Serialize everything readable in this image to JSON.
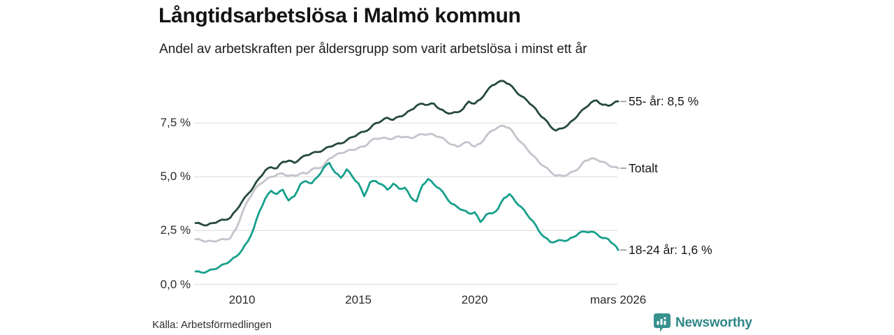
{
  "header": {
    "title": "Långtidsarbetslösa i Malmö kommun",
    "subtitle": "Andel av arbetskraften per åldersgrupp som varit arbetslösa i minst ett år"
  },
  "footer": {
    "source": "Källa: Arbetsförmedlingen",
    "brand": "Newsworthy",
    "brand_color": "#2e8688",
    "badge_color": "#37918f"
  },
  "chart_data": {
    "type": "line",
    "title": "Långtidsarbetslösa i Malmö kommun",
    "subtitle": "Andel av arbetskraften per åldersgrupp som varit arbetslösa i minst ett år",
    "unit": "%",
    "grid_color": "#e0e0e0",
    "tick_dash_color": "#8f8f8f",
    "x_axis": {
      "range": [
        2008,
        2026.17
      ],
      "ticks": [
        {
          "label": "2010",
          "year": 2010
        },
        {
          "label": "2015",
          "year": 2015
        },
        {
          "label": "2020",
          "year": 2020
        },
        {
          "label": "mars 2026",
          "year": 2026.17
        }
      ]
    },
    "y_axis": {
      "range": [
        0,
        9.7
      ],
      "ticks": [
        {
          "label": "0,0 %",
          "value": 0
        },
        {
          "label": "2,5 %",
          "value": 2.5
        },
        {
          "label": "5,0 %",
          "value": 5
        },
        {
          "label": "7,5 %",
          "value": 7.5
        }
      ]
    },
    "series": [
      {
        "name": "Totalt",
        "end_label": "Totalt",
        "color": "#c5c3cc",
        "points": [
          [
            2008,
            2.1
          ],
          [
            2008.25,
            2.05
          ],
          [
            2008.5,
            2
          ],
          [
            2008.75,
            2
          ],
          [
            2009,
            2.05
          ],
          [
            2009.25,
            2.1
          ],
          [
            2009.5,
            2.15
          ],
          [
            2009.75,
            2.6
          ],
          [
            2010,
            3.3
          ],
          [
            2010.25,
            3.9
          ],
          [
            2010.5,
            4.35
          ],
          [
            2010.75,
            4.65
          ],
          [
            2011,
            4.85
          ],
          [
            2011.25,
            5
          ],
          [
            2011.5,
            5.1
          ],
          [
            2011.75,
            5.15
          ],
          [
            2012,
            5.05
          ],
          [
            2012.25,
            5.05
          ],
          [
            2012.5,
            5.15
          ],
          [
            2012.75,
            5.15
          ],
          [
            2013,
            5.35
          ],
          [
            2013.25,
            5.4
          ],
          [
            2013.5,
            5.5
          ],
          [
            2013.75,
            5.85
          ],
          [
            2014,
            6
          ],
          [
            2014.25,
            6.1
          ],
          [
            2014.5,
            6.2
          ],
          [
            2014.75,
            6.25
          ],
          [
            2015,
            6.35
          ],
          [
            2015.25,
            6.4
          ],
          [
            2015.5,
            6.65
          ],
          [
            2015.75,
            6.78
          ],
          [
            2016,
            6.8
          ],
          [
            2016.25,
            6.78
          ],
          [
            2016.5,
            6.78
          ],
          [
            2016.75,
            6.88
          ],
          [
            2017,
            6.85
          ],
          [
            2017.25,
            6.8
          ],
          [
            2017.5,
            6.9
          ],
          [
            2017.75,
            6.98
          ],
          [
            2018,
            6.98
          ],
          [
            2018.25,
            6.95
          ],
          [
            2018.5,
            6.85
          ],
          [
            2018.75,
            6.7
          ],
          [
            2019,
            6.5
          ],
          [
            2019.25,
            6.4
          ],
          [
            2019.5,
            6.55
          ],
          [
            2019.75,
            6.6
          ],
          [
            2020,
            6.4
          ],
          [
            2020.25,
            6.55
          ],
          [
            2020.5,
            6.9
          ],
          [
            2020.75,
            7.15
          ],
          [
            2021,
            7.3
          ],
          [
            2021.25,
            7.37
          ],
          [
            2021.5,
            7.27
          ],
          [
            2021.75,
            6.9
          ],
          [
            2022,
            6.6
          ],
          [
            2022.25,
            6.3
          ],
          [
            2022.5,
            6
          ],
          [
            2022.75,
            5.7
          ],
          [
            2023,
            5.48
          ],
          [
            2023.25,
            5.25
          ],
          [
            2023.5,
            5.05
          ],
          [
            2023.75,
            5.05
          ],
          [
            2024,
            5.1
          ],
          [
            2024.25,
            5.25
          ],
          [
            2024.5,
            5.42
          ],
          [
            2024.75,
            5.75
          ],
          [
            2025,
            5.85
          ],
          [
            2025.25,
            5.8
          ],
          [
            2025.5,
            5.7
          ],
          [
            2025.75,
            5.55
          ],
          [
            2026,
            5.45
          ],
          [
            2026.17,
            5.4
          ]
        ]
      },
      {
        "name": "18-24 år",
        "end_label": "18-24 år: 1,6 %",
        "color": "#16a08c",
        "points": [
          [
            2008,
            0.6
          ],
          [
            2008.25,
            0.55
          ],
          [
            2008.5,
            0.6
          ],
          [
            2008.75,
            0.7
          ],
          [
            2009,
            0.8
          ],
          [
            2009.25,
            0.95
          ],
          [
            2009.5,
            1.1
          ],
          [
            2009.75,
            1.3
          ],
          [
            2010,
            1.6
          ],
          [
            2010.25,
            2
          ],
          [
            2010.5,
            2.6
          ],
          [
            2010.75,
            3.4
          ],
          [
            2011,
            4
          ],
          [
            2011.25,
            4.35
          ],
          [
            2011.5,
            4.2
          ],
          [
            2011.75,
            4.4
          ],
          [
            2012,
            3.9
          ],
          [
            2012.25,
            4.1
          ],
          [
            2012.5,
            4.65
          ],
          [
            2012.75,
            4.8
          ],
          [
            2013,
            4.7
          ],
          [
            2013.25,
            5
          ],
          [
            2013.5,
            5.4
          ],
          [
            2013.75,
            5.65
          ],
          [
            2014,
            5.2
          ],
          [
            2014.25,
            4.95
          ],
          [
            2014.5,
            5.35
          ],
          [
            2014.75,
            5
          ],
          [
            2015,
            4.7
          ],
          [
            2015.25,
            4.1
          ],
          [
            2015.5,
            4.75
          ],
          [
            2015.75,
            4.8
          ],
          [
            2016,
            4.65
          ],
          [
            2016.25,
            4.4
          ],
          [
            2016.5,
            4.68
          ],
          [
            2016.75,
            4.45
          ],
          [
            2017,
            4.5
          ],
          [
            2017.25,
            4.05
          ],
          [
            2017.5,
            3.85
          ],
          [
            2017.75,
            4.6
          ],
          [
            2018,
            4.9
          ],
          [
            2018.25,
            4.65
          ],
          [
            2018.5,
            4.45
          ],
          [
            2018.75,
            4.1
          ],
          [
            2019,
            3.75
          ],
          [
            2019.25,
            3.6
          ],
          [
            2019.5,
            3.45
          ],
          [
            2019.75,
            3.3
          ],
          [
            2020,
            3.35
          ],
          [
            2020.25,
            2.9
          ],
          [
            2020.5,
            3.25
          ],
          [
            2020.75,
            3.3
          ],
          [
            2021,
            3.5
          ],
          [
            2021.25,
            4
          ],
          [
            2021.5,
            4.2
          ],
          [
            2021.75,
            3.85
          ],
          [
            2022,
            3.6
          ],
          [
            2022.25,
            3.25
          ],
          [
            2022.5,
            2.95
          ],
          [
            2022.75,
            2.5
          ],
          [
            2023,
            2.2
          ],
          [
            2023.25,
            1.97
          ],
          [
            2023.5,
            2
          ],
          [
            2023.75,
            2.05
          ],
          [
            2024,
            2.05
          ],
          [
            2024.25,
            2.2
          ],
          [
            2024.5,
            2.4
          ],
          [
            2024.75,
            2.45
          ],
          [
            2025,
            2.45
          ],
          [
            2025.25,
            2.35
          ],
          [
            2025.5,
            2.15
          ],
          [
            2025.75,
            2.1
          ],
          [
            2026,
            1.85
          ],
          [
            2026.17,
            1.6
          ]
        ]
      },
      {
        "name": "55- år",
        "end_label": "55- år: 8,5 %",
        "color": "#25493e",
        "points": [
          [
            2008,
            2.85
          ],
          [
            2008.25,
            2.8
          ],
          [
            2008.5,
            2.75
          ],
          [
            2008.75,
            2.85
          ],
          [
            2009,
            2.95
          ],
          [
            2009.25,
            3
          ],
          [
            2009.5,
            3.1
          ],
          [
            2009.75,
            3.45
          ],
          [
            2010,
            3.85
          ],
          [
            2010.25,
            4.2
          ],
          [
            2010.5,
            4.55
          ],
          [
            2010.75,
            4.95
          ],
          [
            2011,
            5.3
          ],
          [
            2011.25,
            5.45
          ],
          [
            2011.5,
            5.4
          ],
          [
            2011.75,
            5.7
          ],
          [
            2012,
            5.75
          ],
          [
            2012.25,
            5.65
          ],
          [
            2012.5,
            5.85
          ],
          [
            2012.75,
            6
          ],
          [
            2013,
            6.1
          ],
          [
            2013.25,
            6.15
          ],
          [
            2013.5,
            6.25
          ],
          [
            2013.75,
            6.4
          ],
          [
            2014,
            6.5
          ],
          [
            2014.25,
            6.55
          ],
          [
            2014.5,
            6.7
          ],
          [
            2014.75,
            6.85
          ],
          [
            2015,
            7
          ],
          [
            2015.25,
            7.1
          ],
          [
            2015.5,
            7.25
          ],
          [
            2015.75,
            7.5
          ],
          [
            2016,
            7.6
          ],
          [
            2016.25,
            7.75
          ],
          [
            2016.5,
            7.65
          ],
          [
            2016.75,
            7.8
          ],
          [
            2017,
            7.9
          ],
          [
            2017.25,
            8.1
          ],
          [
            2017.5,
            8.3
          ],
          [
            2017.75,
            8.4
          ],
          [
            2018,
            8.35
          ],
          [
            2018.25,
            8.4
          ],
          [
            2018.5,
            8.15
          ],
          [
            2018.75,
            8
          ],
          [
            2019,
            7.95
          ],
          [
            2019.25,
            8
          ],
          [
            2019.5,
            8.15
          ],
          [
            2019.75,
            8.5
          ],
          [
            2020,
            8.4
          ],
          [
            2020.25,
            8.6
          ],
          [
            2020.5,
            8.95
          ],
          [
            2020.75,
            9.25
          ],
          [
            2021,
            9.4
          ],
          [
            2021.25,
            9.45
          ],
          [
            2021.5,
            9.3
          ],
          [
            2021.75,
            9
          ],
          [
            2022,
            8.75
          ],
          [
            2022.25,
            8.55
          ],
          [
            2022.5,
            8.3
          ],
          [
            2022.75,
            7.95
          ],
          [
            2023,
            7.7
          ],
          [
            2023.25,
            7.35
          ],
          [
            2023.5,
            7.15
          ],
          [
            2023.75,
            7.25
          ],
          [
            2024,
            7.4
          ],
          [
            2024.25,
            7.65
          ],
          [
            2024.5,
            7.95
          ],
          [
            2024.75,
            8.2
          ],
          [
            2025,
            8.45
          ],
          [
            2025.25,
            8.55
          ],
          [
            2025.5,
            8.35
          ],
          [
            2025.75,
            8.3
          ],
          [
            2026,
            8.45
          ],
          [
            2026.17,
            8.5
          ]
        ]
      }
    ]
  }
}
